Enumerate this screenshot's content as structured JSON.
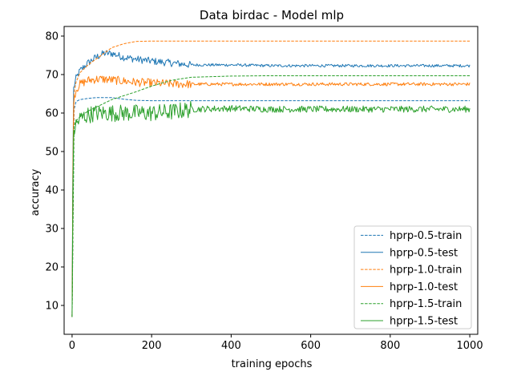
{
  "chart_data": {
    "type": "line",
    "title": "Data birdac - Model mlp",
    "xlabel": "training epochs",
    "ylabel": "accuracy",
    "xlim": [
      -20,
      1020
    ],
    "ylim": [
      2.5,
      82.5
    ],
    "xticks": [
      0,
      200,
      400,
      600,
      800,
      1000
    ],
    "yticks": [
      10,
      20,
      30,
      40,
      50,
      60,
      70,
      80
    ],
    "grid": false,
    "legend_position": "lower-right",
    "series": [
      {
        "name": "hprp-0.5-train",
        "color": "#1f77b4",
        "style": "dashed",
        "x": [
          0,
          3,
          10,
          20,
          40,
          60,
          80,
          100,
          130,
          160,
          200,
          250,
          300,
          400,
          500,
          600,
          700,
          800,
          900,
          1000
        ],
        "y": [
          7,
          60,
          63,
          63.5,
          63.8,
          64,
          64,
          64,
          63.6,
          63.3,
          63.2,
          63.2,
          63.2,
          63.2,
          63.2,
          63.2,
          63.2,
          63.2,
          63.2,
          63.2
        ]
      },
      {
        "name": "hprp-0.5-test",
        "color": "#1f77b4",
        "style": "solid",
        "noise": 0.6,
        "x": [
          0,
          3,
          10,
          20,
          40,
          60,
          80,
          100,
          130,
          160,
          200,
          250,
          300,
          400,
          500,
          600,
          700,
          800,
          900,
          1000
        ],
        "y": [
          7,
          66,
          69,
          71,
          73,
          74.5,
          75.5,
          75.5,
          74.5,
          74,
          73.5,
          73,
          72.5,
          72.5,
          72.3,
          72.3,
          72.3,
          72.3,
          72.3,
          72.3
        ]
      },
      {
        "name": "hprp-1.0-train",
        "color": "#ff7f0e",
        "style": "dashed",
        "x": [
          0,
          3,
          10,
          20,
          40,
          60,
          80,
          100,
          130,
          160,
          200,
          250,
          300,
          400,
          500,
          600,
          700,
          800,
          900,
          1000
        ],
        "y": [
          7,
          64,
          68,
          70.5,
          72.5,
          74,
          75.5,
          77,
          78,
          78.6,
          78.7,
          78.7,
          78.7,
          78.7,
          78.7,
          78.7,
          78.7,
          78.7,
          78.7,
          78.7
        ]
      },
      {
        "name": "hprp-1.0-test",
        "color": "#ff7f0e",
        "style": "solid",
        "noise": 0.7,
        "x": [
          0,
          3,
          10,
          20,
          40,
          60,
          80,
          100,
          130,
          160,
          200,
          250,
          300,
          400,
          500,
          600,
          700,
          800,
          900,
          1000
        ],
        "y": [
          7,
          63,
          66,
          67.5,
          68.5,
          68.8,
          68.8,
          68.6,
          68.3,
          68,
          67.8,
          67.6,
          67.5,
          67.5,
          67.5,
          67.5,
          67.5,
          67.5,
          67.5,
          67.5
        ]
      },
      {
        "name": "hprp-1.5-train",
        "color": "#2ca02c",
        "style": "dashed",
        "x": [
          0,
          3,
          10,
          20,
          40,
          60,
          80,
          100,
          130,
          160,
          200,
          250,
          300,
          400,
          500,
          600,
          700,
          800,
          900,
          1000
        ],
        "y": [
          7,
          56,
          58,
          59,
          60.5,
          61.5,
          62.5,
          63.5,
          64.5,
          65.5,
          67,
          68.5,
          69.3,
          69.6,
          69.7,
          69.7,
          69.7,
          69.7,
          69.7,
          69.7
        ]
      },
      {
        "name": "hprp-1.5-test",
        "color": "#2ca02c",
        "style": "solid",
        "noise": 1.4,
        "x": [
          0,
          3,
          10,
          20,
          40,
          60,
          80,
          100,
          130,
          160,
          200,
          250,
          300,
          400,
          500,
          600,
          700,
          800,
          900,
          1000
        ],
        "y": [
          7,
          55,
          57,
          58.5,
          59.5,
          60,
          60,
          60,
          60,
          60,
          60,
          60.3,
          61,
          61.2,
          61,
          61,
          61,
          61,
          61,
          61
        ]
      }
    ]
  }
}
